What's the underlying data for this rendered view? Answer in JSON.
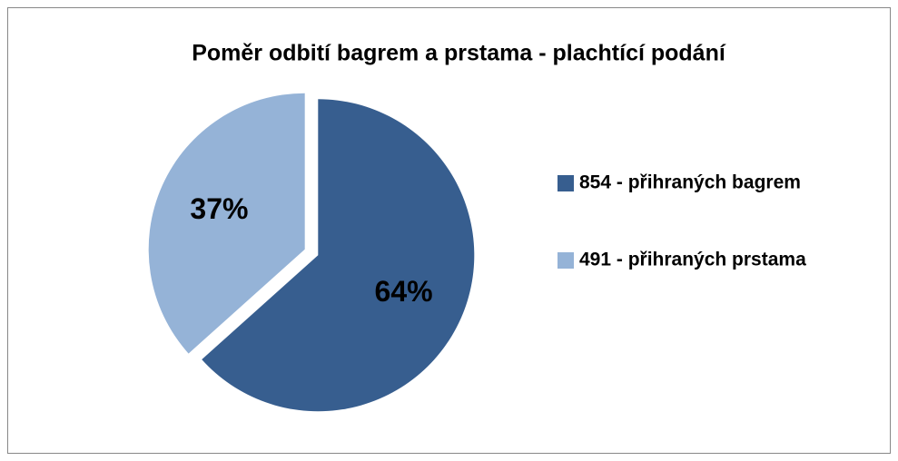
{
  "chart_data": {
    "type": "pie",
    "title": "Poměr odbití bagrem a prstama - plachtící podání",
    "categories": [
      "854 - přihraných bagrem",
      "491 - přihraných prstama"
    ],
    "values": [
      64,
      37
    ],
    "value_labels": [
      "64%",
      "37%"
    ],
    "colors": [
      "#375e8f",
      "#95b3d7"
    ],
    "legend": "right"
  }
}
